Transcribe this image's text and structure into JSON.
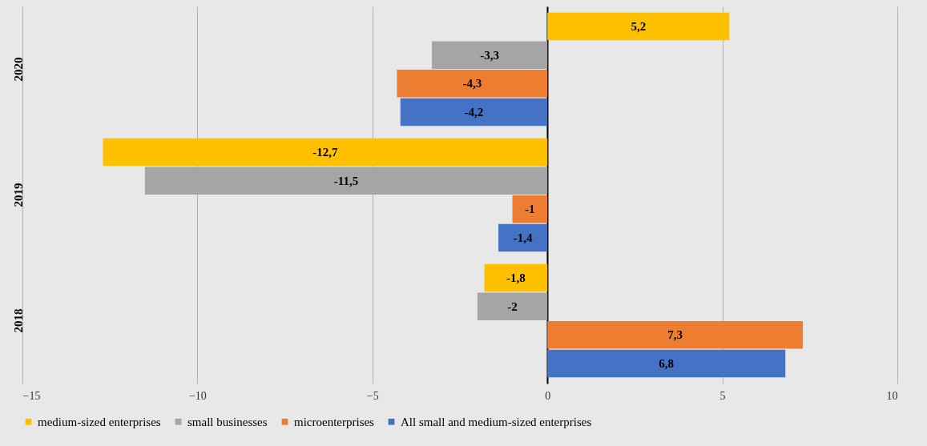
{
  "chart_data": {
    "type": "bar",
    "orientation": "horizontal",
    "categories": [
      "2020",
      "2019",
      "2018"
    ],
    "series": [
      {
        "name": "medium-sized enterprises",
        "color": "#ffc000",
        "values": [
          5.2,
          -12.7,
          -1.8
        ],
        "value_labels": [
          "5,2",
          "-12,7",
          "-1,8"
        ]
      },
      {
        "name": "small businesses",
        "color": "#a5a5a5",
        "values": [
          -3.3,
          -11.5,
          -2
        ],
        "value_labels": [
          "-3,3",
          "-11,5",
          "-2"
        ]
      },
      {
        "name": "microenterprises",
        "color": "#ed7d31",
        "values": [
          -4.3,
          -1,
          7.3
        ],
        "value_labels": [
          "-4,3",
          "-1",
          "7,3"
        ]
      },
      {
        "name": "All small and medium-sized enterprises",
        "color": "#4472c4",
        "values": [
          -4.2,
          -1.4,
          6.8
        ],
        "value_labels": [
          "-4,2",
          "-1,4",
          "6,8"
        ]
      }
    ],
    "xlim": [
      -15,
      10
    ],
    "xticks": [
      -15,
      -10,
      -5,
      0,
      5,
      10
    ],
    "grid": "x",
    "legend": "bottom"
  }
}
